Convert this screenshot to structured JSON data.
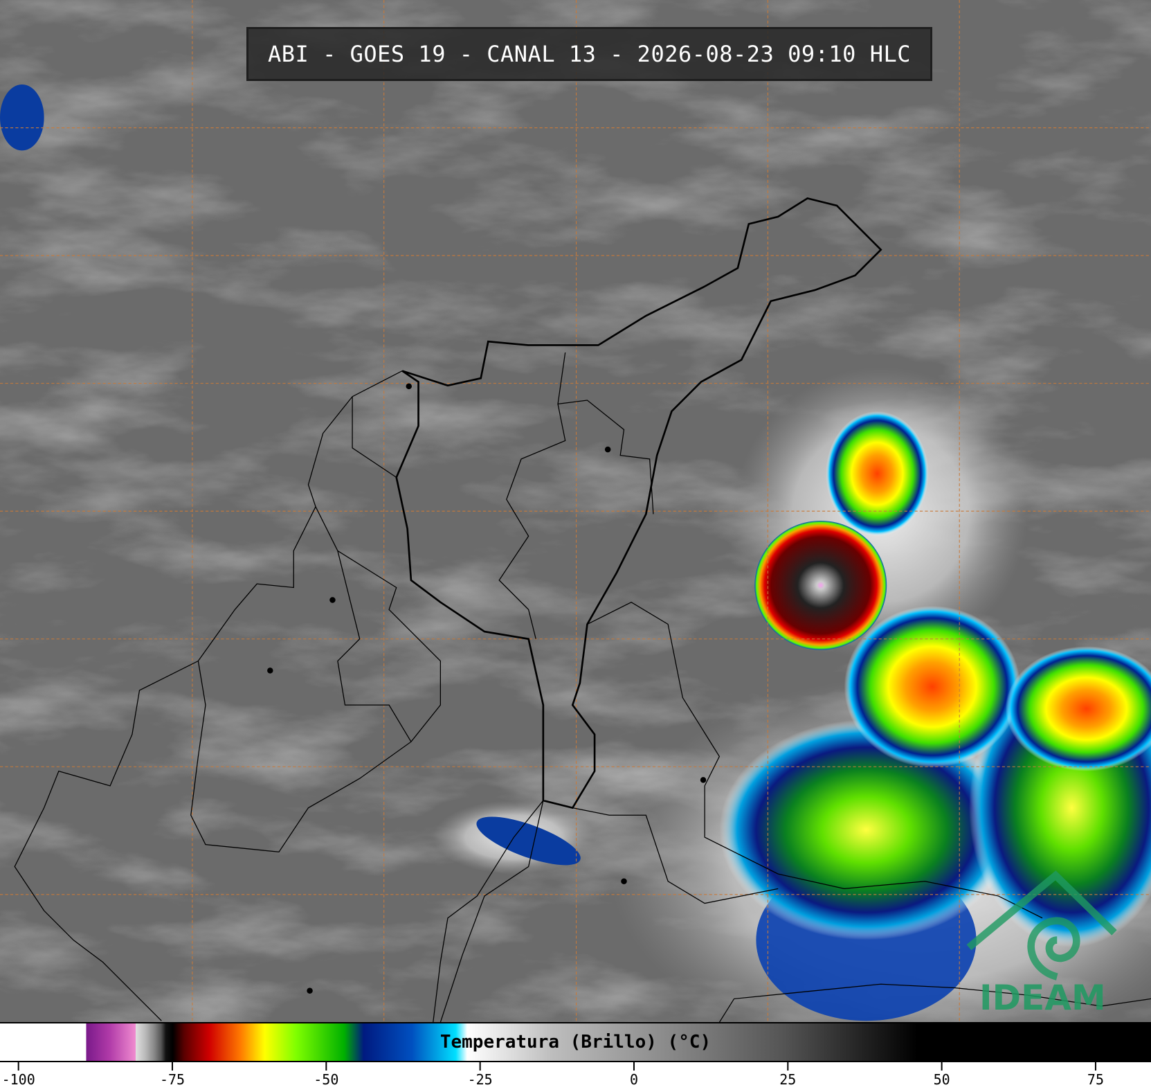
{
  "header": {
    "title": "ABI - GOES 19 - CANAL 13 - 2026-08-23 09:10 HLC"
  },
  "colorbar": {
    "label": "Temperatura (Brillo) (°C)",
    "range": [
      -103,
      84
    ],
    "ticks": [
      -100,
      -75,
      -50,
      -25,
      0,
      25,
      50,
      75
    ]
  },
  "logo": {
    "text": "IDEAM"
  }
}
